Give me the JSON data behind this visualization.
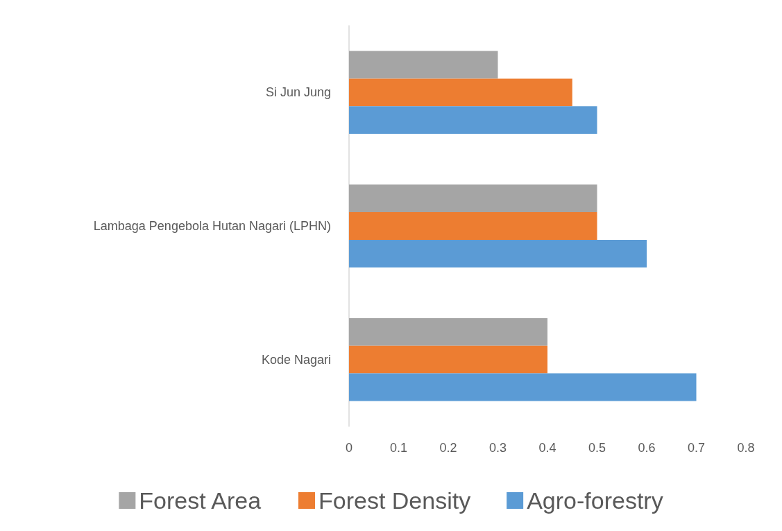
{
  "chart_data": {
    "type": "bar",
    "orientation": "horizontal",
    "categories": [
      "Si Jun Jung",
      "Lambaga Pengebola Hutan Nagari (LPHN)",
      "Kode Nagari"
    ],
    "series": [
      {
        "name": "Forest Area",
        "color": "#a5a5a5",
        "values": [
          0.3,
          0.5,
          0.4
        ]
      },
      {
        "name": "Forest Density",
        "color": "#ed7d31",
        "values": [
          0.45,
          0.5,
          0.4
        ]
      },
      {
        "name": "Agro-forestry",
        "color": "#5b9bd5",
        "values": [
          0.5,
          0.6,
          0.7
        ]
      }
    ],
    "xlim": [
      0,
      0.8
    ],
    "xticks": [
      0,
      0.1,
      0.2,
      0.3,
      0.4,
      0.5,
      0.6,
      0.7,
      0.8
    ],
    "grid": false,
    "legend": "bottom"
  }
}
